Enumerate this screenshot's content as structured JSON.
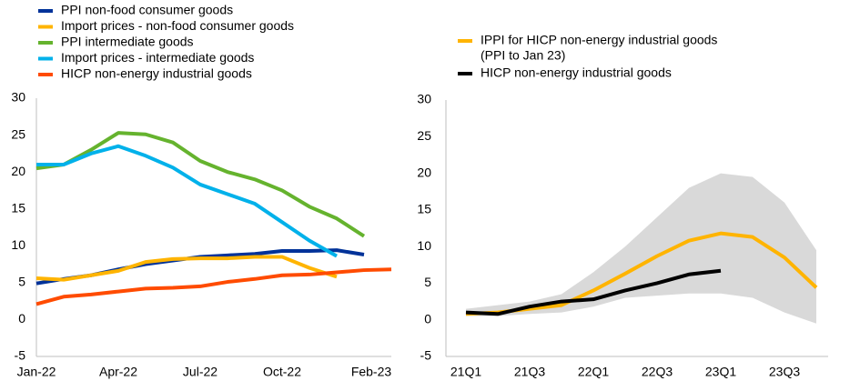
{
  "chart_data": [
    {
      "type": "line",
      "categories": [
        "Jan-22",
        null,
        null,
        "Apr-22",
        null,
        null,
        "Jul-22",
        null,
        null,
        "Oct-22",
        null,
        null,
        null,
        "Feb-23"
      ],
      "ylim": [
        -5,
        30
      ],
      "yticks": [
        -5,
        0,
        5,
        10,
        15,
        20,
        25,
        30
      ],
      "series": [
        {
          "name": "PPI non-food consumer goods",
          "color": "#003299",
          "values": [
            4.9,
            5.5,
            6.0,
            6.8,
            7.5,
            8.0,
            8.5,
            8.7,
            8.9,
            9.3,
            9.3,
            9.4,
            8.8,
            null
          ]
        },
        {
          "name": "Import prices - non-food consumer goods",
          "color": "#ffb400",
          "values": [
            5.6,
            5.4,
            6.0,
            6.6,
            7.8,
            8.2,
            8.3,
            8.3,
            8.5,
            8.5,
            7.0,
            5.8,
            null,
            null
          ]
        },
        {
          "name": "PPI intermediate goods",
          "color": "#65b32e",
          "values": [
            20.5,
            21.0,
            23.0,
            25.3,
            25.1,
            24.0,
            21.5,
            20.0,
            19.0,
            17.5,
            15.3,
            13.7,
            11.3,
            null
          ]
        },
        {
          "name": "Import prices - intermediate goods",
          "color": "#00b1ea",
          "values": [
            21.0,
            21.0,
            22.5,
            23.5,
            22.2,
            20.6,
            18.3,
            17.0,
            15.7,
            13.2,
            10.7,
            8.6,
            null,
            null
          ]
        },
        {
          "name": "HICP non-energy industrial goods",
          "color": "#ff4b00",
          "values": [
            2.1,
            3.1,
            3.4,
            3.8,
            4.2,
            4.3,
            4.5,
            5.1,
            5.5,
            6.0,
            6.1,
            6.4,
            6.7,
            6.8
          ]
        }
      ]
    },
    {
      "type": "line",
      "categories": [
        "21Q1",
        null,
        "21Q3",
        null,
        "22Q1",
        null,
        "22Q3",
        null,
        "23Q1",
        null,
        "23Q3",
        null
      ],
      "ylim": [
        -5,
        30
      ],
      "yticks": [
        -5,
        0,
        5,
        10,
        15,
        20,
        25,
        30
      ],
      "band": {
        "color": "#d9d9d9",
        "lower": [
          0.5,
          0.5,
          0.8,
          1.0,
          1.8,
          3.0,
          3.3,
          3.6,
          3.6,
          3.0,
          1.0,
          -0.5
        ],
        "upper": [
          1.5,
          2.0,
          2.5,
          3.5,
          6.5,
          10.0,
          14.0,
          18.0,
          20.0,
          19.5,
          16.0,
          9.5
        ]
      },
      "series": [
        {
          "name": "IPPI for HICP non-energy industrial goods",
          "legend_note": "(PPI to Jan 23)",
          "color": "#ffb400",
          "values": [
            0.8,
            1.0,
            1.5,
            2.0,
            4.0,
            6.3,
            8.7,
            10.8,
            11.8,
            11.3,
            8.5,
            4.4
          ]
        },
        {
          "name": "HICP non-energy industrial goods",
          "color": "#000000",
          "values": [
            1.0,
            0.8,
            1.8,
            2.5,
            2.8,
            4.0,
            5.0,
            6.2,
            6.7,
            null,
            null,
            null
          ]
        }
      ]
    }
  ]
}
